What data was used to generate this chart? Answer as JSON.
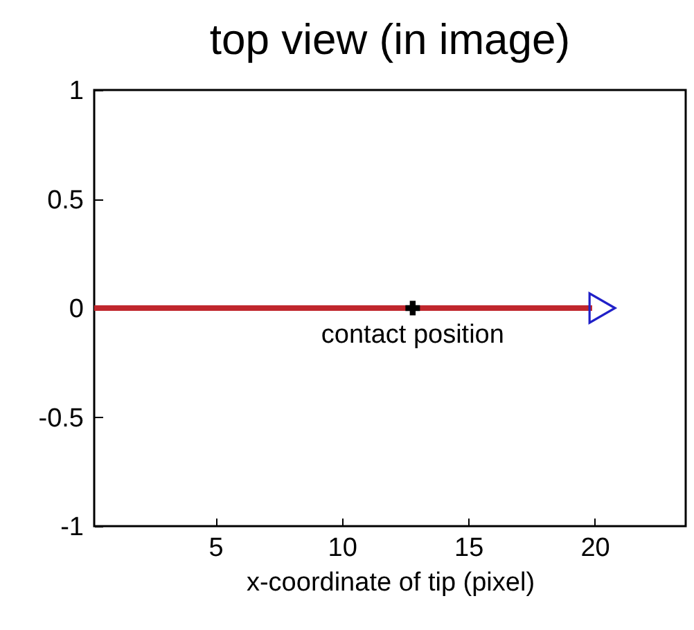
{
  "chart_data": {
    "type": "line",
    "title": "top view (in image)",
    "xlabel": "x-coordinate of tip (pixel)",
    "xlim": [
      0.2,
      23.6
    ],
    "xticks": [
      5,
      10,
      15,
      20
    ],
    "ylim": [
      -1,
      1
    ],
    "yticks": [
      -1,
      -0.5,
      0,
      0.5,
      1
    ],
    "grid": false,
    "series": [
      {
        "type": "line",
        "color": "#c0272d",
        "x": [
          0.2,
          19.9
        ],
        "values": [
          0,
          0
        ],
        "marker": "none",
        "line_style": "solid"
      },
      {
        "type": "scatter",
        "color": "#000000",
        "x": [
          12.8
        ],
        "values": [
          0
        ],
        "marker": "cross"
      },
      {
        "type": "scatter",
        "color": "#2020c8",
        "x": [
          20.3
        ],
        "values": [
          0
        ],
        "marker": "triangle"
      }
    ],
    "annotations": [
      {
        "text": "contact position",
        "x": 12.8,
        "y": 0
      }
    ]
  }
}
